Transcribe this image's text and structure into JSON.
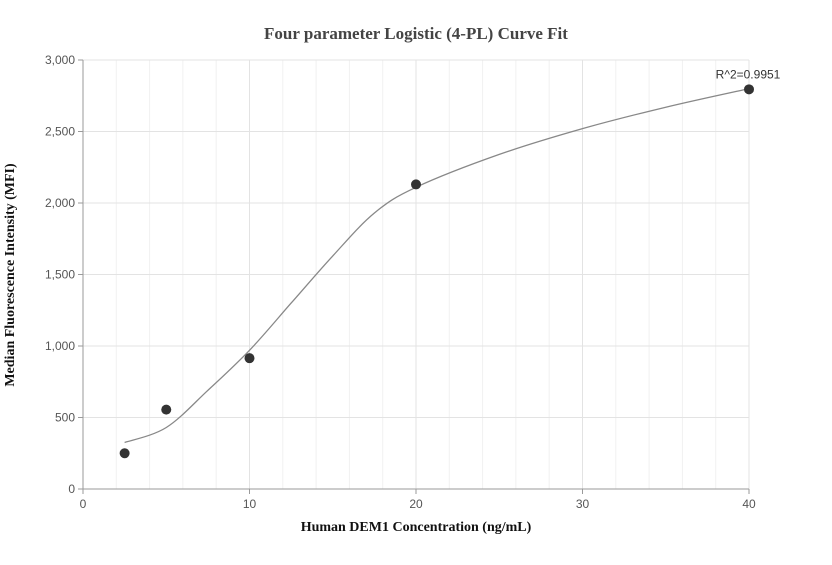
{
  "chart_data": {
    "type": "scatter",
    "title": "Four parameter Logistic (4-PL) Curve Fit",
    "xlabel": "Human DEM1 Concentration (ng/mL)",
    "ylabel": "Median Fluorescence Intensity (MFI)",
    "xlim": [
      0,
      40
    ],
    "ylim": [
      0,
      3000
    ],
    "x_ticks": [
      0,
      10,
      20,
      30,
      40
    ],
    "x_tick_labels": [
      "0",
      "10",
      "20",
      "30",
      "40"
    ],
    "y_ticks": [
      0,
      500,
      1000,
      1500,
      2000,
      2500,
      3000
    ],
    "y_tick_labels": [
      "0",
      "500",
      "1,000",
      "1,500",
      "2,000",
      "2,500",
      "3,000"
    ],
    "grid": true,
    "legend": "none",
    "series": [
      {
        "kind": "points",
        "x": [
          2.5,
          5,
          10,
          20,
          40
        ],
        "y": [
          250,
          555,
          915,
          2130,
          2795
        ],
        "color": "#333333"
      },
      {
        "kind": "fit-curve",
        "x": [
          2.5,
          5,
          7.5,
          10,
          12.5,
          15,
          17.5,
          20,
          25,
          30,
          35,
          40
        ],
        "y": [
          325,
          430,
          690,
          970,
          1300,
          1630,
          1930,
          2110,
          2340,
          2520,
          2670,
          2800
        ],
        "color": "#888888"
      }
    ],
    "annotations": [
      {
        "text": "R^2=0.9951",
        "x": 40,
        "y": 2795
      }
    ]
  }
}
